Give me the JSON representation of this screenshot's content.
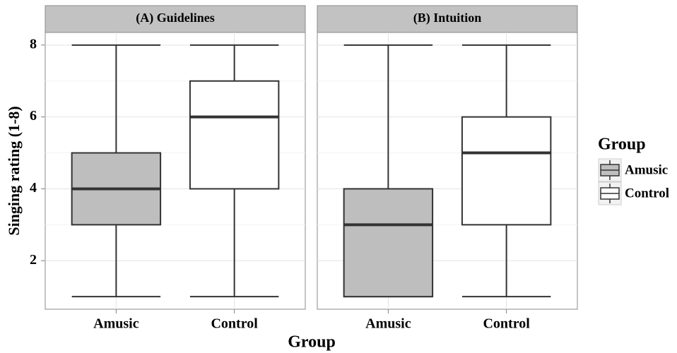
{
  "chart_data": {
    "type": "box",
    "ylabel": "Singing rating (1-8)",
    "xlabel": "Group",
    "categories": [
      "Amusic",
      "Control"
    ],
    "ylim": [
      0.65,
      8.35
    ],
    "yticks": [
      2,
      4,
      6,
      8
    ],
    "grid": true,
    "legend": {
      "title": "Group",
      "position": "right"
    },
    "series": [
      {
        "name": "Amusic",
        "color": "#bebebe"
      },
      {
        "name": "Control",
        "color": "#ffffff"
      }
    ],
    "facets": [
      {
        "title": "(A) Guidelines",
        "boxes": [
          {
            "min": 1,
            "q1": 3,
            "median": 4,
            "q3": 5,
            "max": 8
          },
          {
            "min": 1,
            "q1": 4,
            "median": 6,
            "q3": 7,
            "max": 8
          }
        ]
      },
      {
        "title": "(B) Intuition",
        "boxes": [
          {
            "min": 1,
            "q1": 1,
            "median": 3,
            "q3": 4,
            "max": 8
          },
          {
            "min": 1,
            "q1": 3,
            "median": 5,
            "q3": 6,
            "max": 8
          }
        ]
      }
    ]
  }
}
